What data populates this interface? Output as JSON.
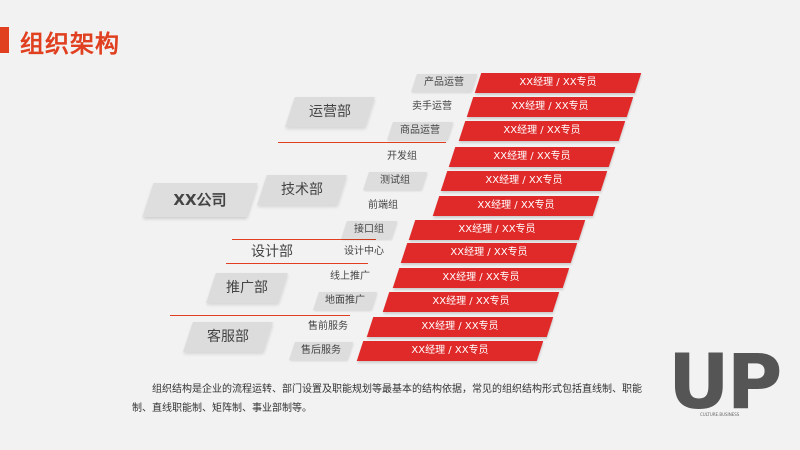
{
  "title": "组织架构",
  "company": "XX公司",
  "departments": [
    {
      "name": "运营部",
      "subs": [
        "产品运营",
        "卖手运营",
        "商品运营"
      ]
    },
    {
      "name": "技术部",
      "subs": [
        "开发组",
        "测试组",
        "前端组",
        "接口组"
      ]
    },
    {
      "name": "设计部",
      "subs": [
        "设计中心"
      ]
    },
    {
      "name": "推广部",
      "subs": [
        "线上推广",
        "地面推广"
      ]
    },
    {
      "name": "客服部",
      "subs": [
        "售前服务",
        "售后服务"
      ]
    }
  ],
  "role_label": "XX经理 / XX专员",
  "description": "组织结构是企业的流程运转、部门设置及职能规划等最基本的结构依据，常见的组织结构形式包括直线制、职能制、直线职能制、矩阵制、事业部制等。",
  "logo": {
    "text": "UP",
    "caption": "CULTURE.BUSINESS"
  },
  "colors": {
    "accent": "#e0401f",
    "role": "#e02a2a"
  }
}
